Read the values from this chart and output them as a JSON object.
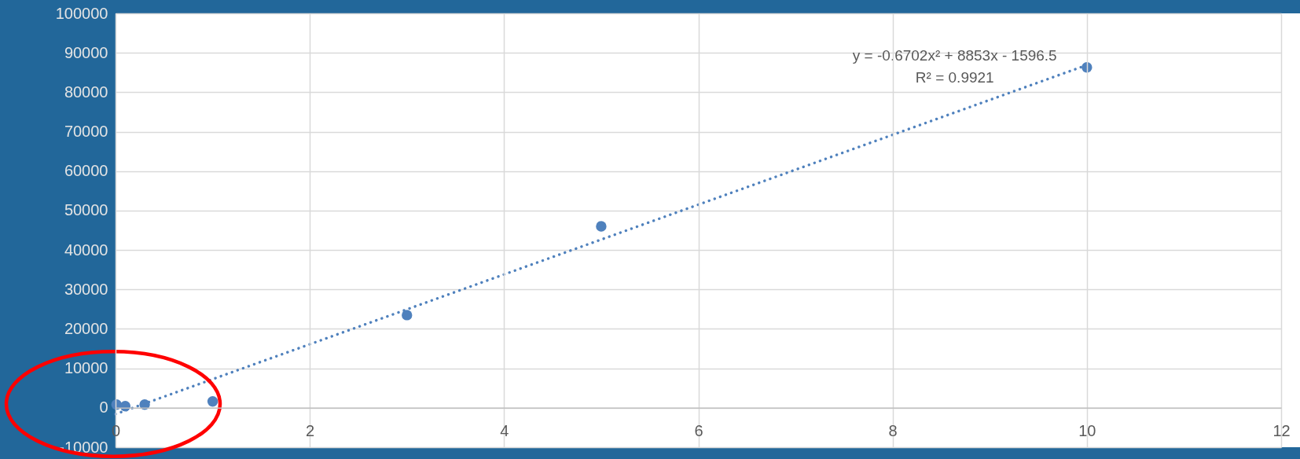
{
  "chart_data": {
    "type": "scatter",
    "x": [
      0.01,
      0.1,
      0.3,
      1,
      3,
      5,
      10
    ],
    "series": [
      {
        "color": "#4f81bd",
        "marker": "circle",
        "values": [
          800,
          400,
          800,
          1600,
          23500,
          46000,
          86300
        ]
      },
      {
        "type": "line",
        "color": "#4f81bd",
        "line_style": "dotted",
        "marker": "none",
        "x": [
          0,
          2,
          4,
          6,
          8,
          10
        ],
        "values": [
          -1600,
          16100,
          33800,
          51500,
          69200,
          86900
        ]
      }
    ],
    "annotations": [
      "y = -0.6702x² + 8853x - 1596.5",
      "R² = 0.9921"
    ],
    "xlim": [
      0,
      12
    ],
    "xticks": [
      0,
      2,
      4,
      6,
      8,
      10,
      12
    ],
    "ylim": [
      -10000,
      100000
    ],
    "yticks": [
      -10000,
      0,
      10000,
      20000,
      30000,
      40000,
      50000,
      60000,
      70000,
      80000,
      90000,
      100000
    ],
    "grid": true
  }
}
